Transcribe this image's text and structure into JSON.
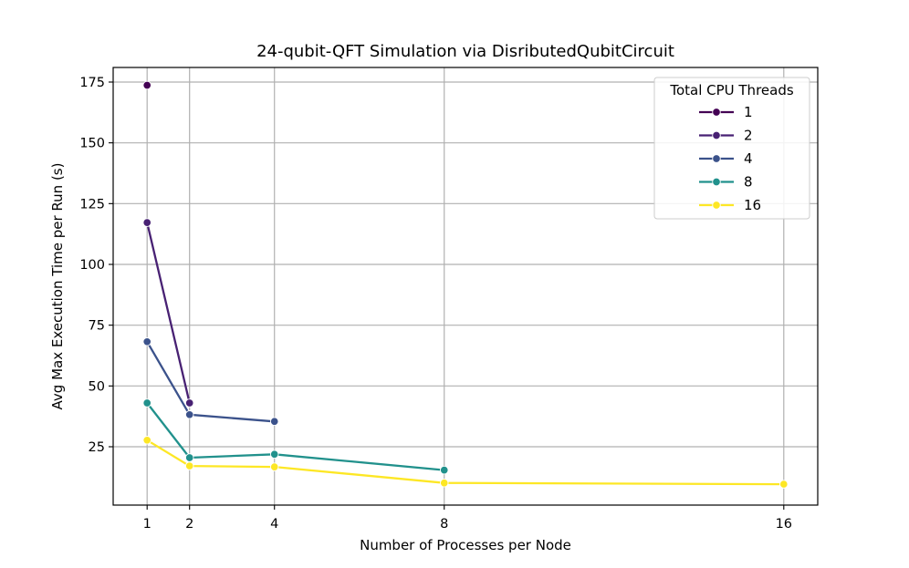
{
  "chart_data": {
    "type": "line",
    "title": "24-qubit-QFT Simulation via DisributedQubitCircuit",
    "xlabel": "Number of Processes per Node",
    "ylabel": "Avg Max Execution Time per Run (s)",
    "xlim": [
      0.2,
      16.8
    ],
    "ylim": [
      1.0,
      181.0
    ],
    "xticks": [
      1,
      2,
      4,
      8,
      16
    ],
    "yticks": [
      25,
      50,
      75,
      100,
      125,
      150,
      175
    ],
    "grid": true,
    "legend": {
      "title": "Total CPU Threads",
      "placement": "top-right"
    },
    "series": [
      {
        "name": "1",
        "color": "#440154",
        "x": [
          1
        ],
        "y": [
          173.7
        ]
      },
      {
        "name": "2",
        "color": "#482173",
        "x": [
          1,
          2
        ],
        "y": [
          117.2,
          43.0
        ]
      },
      {
        "name": "4",
        "color": "#3b528b",
        "x": [
          1,
          2,
          4
        ],
        "y": [
          68.2,
          38.2,
          35.4
        ]
      },
      {
        "name": "8",
        "color": "#21918c",
        "x": [
          1,
          2,
          4,
          8
        ],
        "y": [
          43.0,
          20.5,
          21.9,
          15.4
        ]
      },
      {
        "name": "16",
        "color": "#fde725",
        "x": [
          1,
          2,
          4,
          8,
          16
        ],
        "y": [
          27.7,
          17.1,
          16.7,
          10.1,
          9.6
        ]
      }
    ]
  }
}
